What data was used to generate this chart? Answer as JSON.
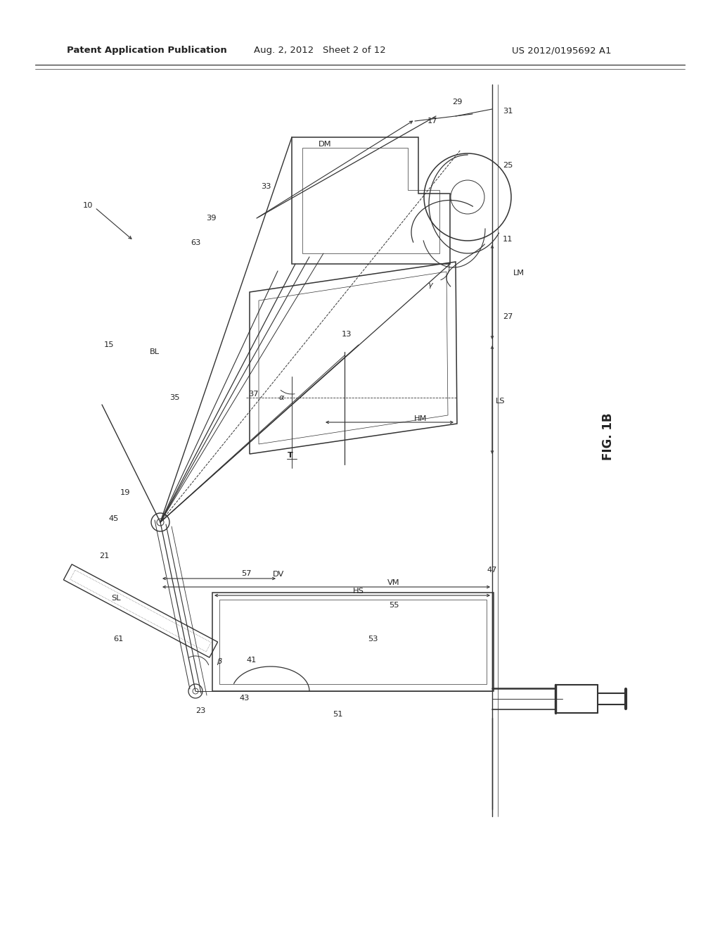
{
  "background": "#ffffff",
  "line_color": "#333333",
  "text_color": "#222222",
  "header_left": "Patent Application Publication",
  "header_mid": "Aug. 2, 2012   Sheet 2 of 12",
  "header_right": "US 2012/0195692 A1",
  "fig_label": "FIG. 1B"
}
